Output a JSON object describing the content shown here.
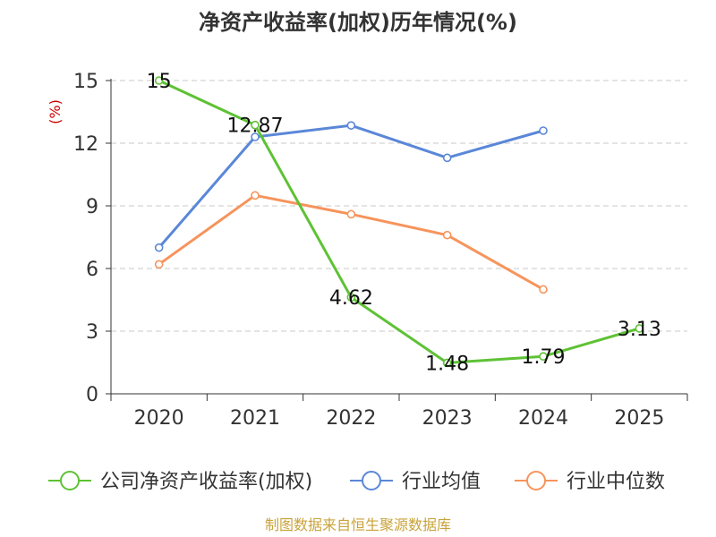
{
  "chart_data": {
    "type": "line",
    "title": "净资产收益率(加权)历年情况(%)",
    "xlabel": "",
    "ylabel": "(%)",
    "categories": [
      "2020",
      "2021",
      "2022",
      "2023",
      "2024",
      "2025"
    ],
    "ylim": [
      0,
      15
    ],
    "yticks": [
      0,
      3,
      6,
      9,
      12,
      15
    ],
    "grid": true,
    "legend_position": "bottom",
    "series": [
      {
        "name": "公司净资产收益率(加权)",
        "color": "#5ec234",
        "values": [
          15,
          12.87,
          4.62,
          1.48,
          1.79,
          3.13
        ],
        "labels": [
          "15",
          "12.87",
          "4.62",
          "1.48",
          "1.79",
          "3.13"
        ]
      },
      {
        "name": "行业均值",
        "color": "#5a87d8",
        "values": [
          7.0,
          12.3,
          12.85,
          11.3,
          12.6,
          null
        ]
      },
      {
        "name": "行业中位数",
        "color": "#f6945c",
        "values": [
          6.2,
          9.5,
          8.6,
          7.6,
          5.0,
          null
        ]
      }
    ],
    "source": "制图数据来自恒生聚源数据库",
    "ylabel_color": "#cc0000",
    "source_color": "#c9a33a"
  }
}
